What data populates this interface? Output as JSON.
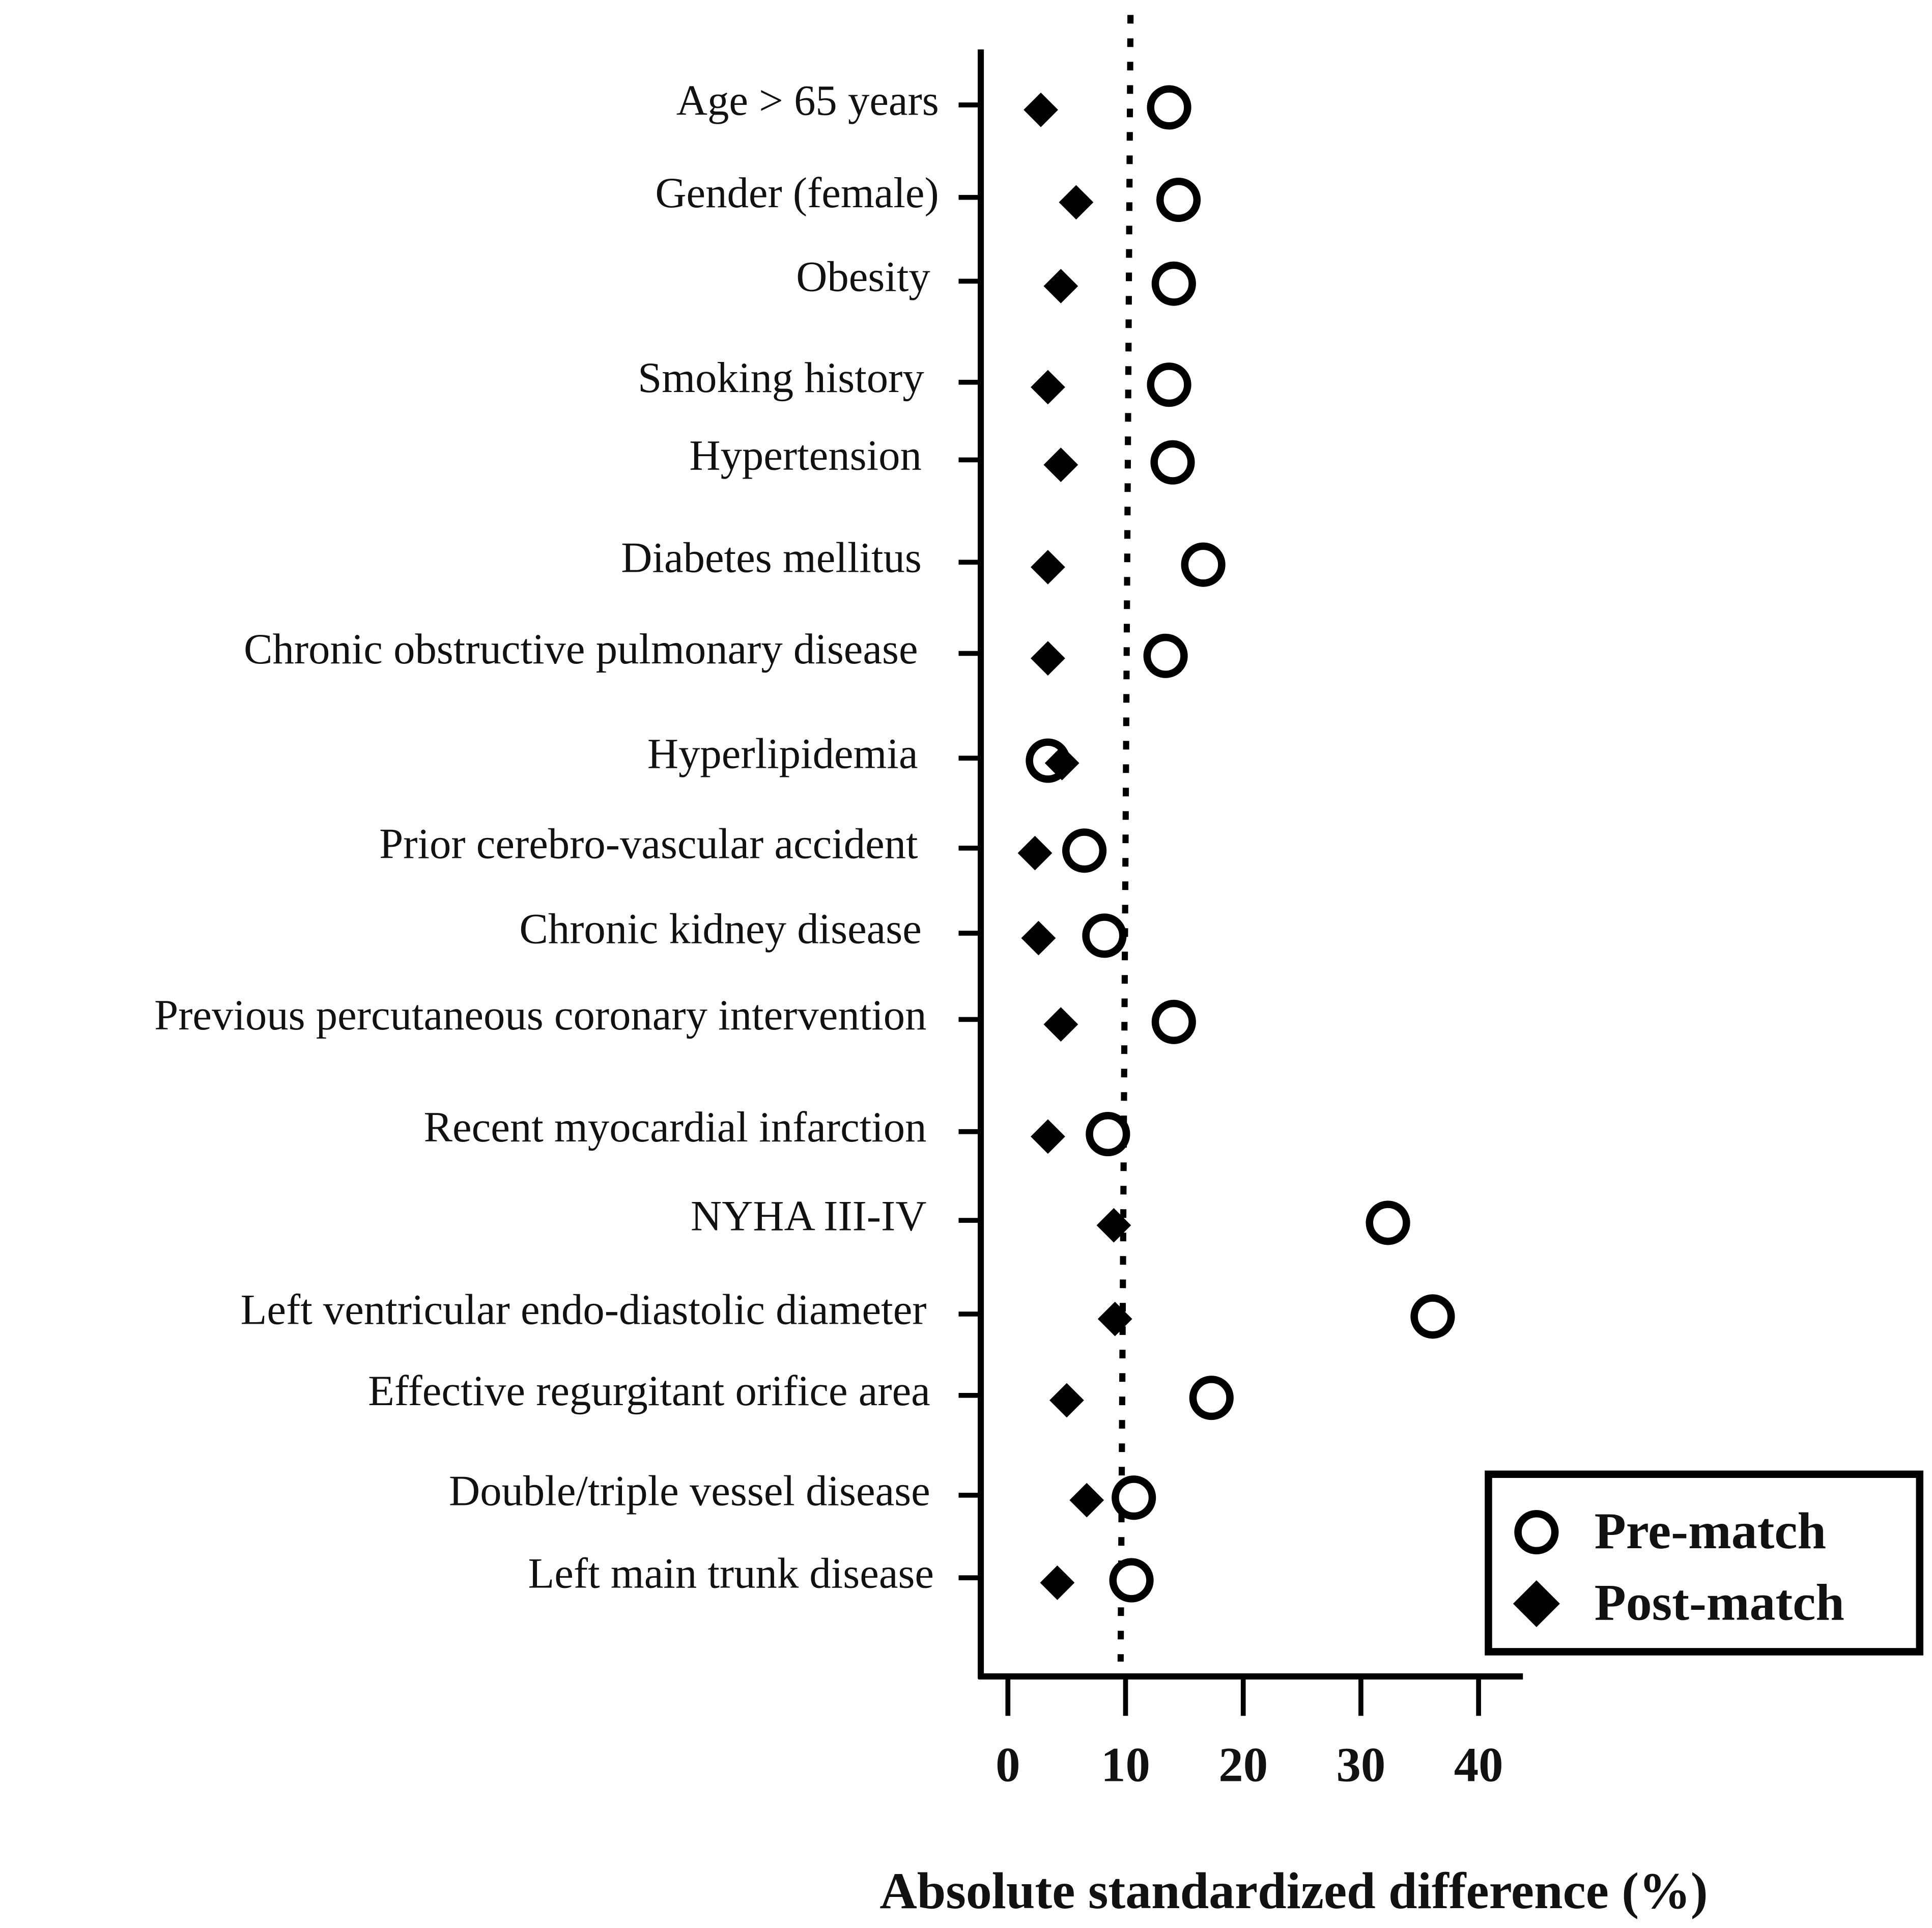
{
  "chart_data": {
    "type": "scatter",
    "title": "",
    "xlabel": "Absolute standardized difference (%)",
    "ylabel": "",
    "xlim": [
      0,
      40
    ],
    "xticks": [
      "0",
      "10",
      "20",
      "30",
      "40"
    ],
    "reference_line": 10,
    "grid": false,
    "legend_placement": "bottom-right",
    "categories": [
      "Age > 65 years",
      "Gender (female)",
      "Obesity",
      "Smoking history",
      "Hypertension",
      "Diabetes mellitus",
      "Chronic obstructive pulmonary disease",
      "Hyperlipidemia",
      "Prior cerebro-vascular accident",
      "Chronic kidney disease",
      "Previous percutaneous coronary intervention",
      "Recent myocardial infarction",
      "NYHA III-IV",
      "Left ventricular endo-diastolic diameter",
      "Effective regurgitant orifice area",
      "Double/triple vessel disease",
      "Left main trunk disease"
    ],
    "series": [
      {
        "name": "Pre-match",
        "marker": "open-circle",
        "color": "#000000",
        "values": [
          13.7,
          14.5,
          14.1,
          13.7,
          14.0,
          16.6,
          13.4,
          3.4,
          6.5,
          8.2,
          14.1,
          8.5,
          32.3,
          36.1,
          17.3,
          10.7,
          10.5
        ]
      },
      {
        "name": "Post-match",
        "marker": "filled-diamond",
        "color": "#000000",
        "values": [
          2.8,
          5.8,
          4.5,
          3.4,
          4.5,
          3.4,
          3.4,
          4.6,
          2.3,
          2.6,
          4.5,
          3.4,
          9.0,
          9.1,
          5.0,
          6.7,
          4.2
        ]
      }
    ]
  }
}
